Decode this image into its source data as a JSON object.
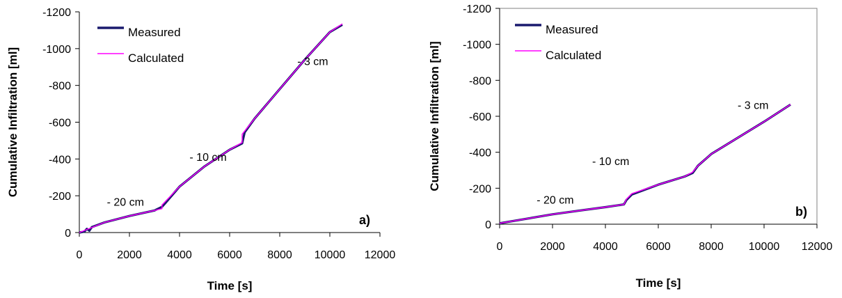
{
  "chart_data": [
    {
      "panel_label": "a)",
      "type": "line",
      "xlabel": "Time [s]",
      "ylabel": "Cumulative Infiltration [ml]",
      "xlim": [
        0,
        12000
      ],
      "ylim": [
        0,
        -1200
      ],
      "xticks": [
        "0",
        "2000",
        "4000",
        "6000",
        "8000",
        "10000",
        "12000"
      ],
      "yticks": [
        "0",
        "-200",
        "-400",
        "-600",
        "-800",
        "-1000",
        "-1200"
      ],
      "xtick_values": [
        0,
        2000,
        4000,
        6000,
        8000,
        10000,
        12000
      ],
      "ytick_values": [
        0,
        -200,
        -400,
        -600,
        -800,
        -1000,
        -1200
      ],
      "frame": "axes-only",
      "grid": false,
      "legend_position": "top-left",
      "series": [
        {
          "name": "Measured",
          "color": "#1a1a6e",
          "x": [
            0,
            200,
            300,
            400,
            500,
            1000,
            2000,
            3000,
            3300,
            3400,
            4000,
            5000,
            6000,
            6500,
            6600,
            7000,
            8000,
            9000,
            10000,
            10500
          ],
          "y": [
            0,
            -5,
            -20,
            -10,
            -30,
            -55,
            -90,
            -120,
            -140,
            -155,
            -250,
            -360,
            -450,
            -485,
            -545,
            -620,
            -780,
            -940,
            -1090,
            -1130
          ]
        },
        {
          "name": "Calculated",
          "color": "#ff00ff",
          "x": [
            0,
            1000,
            2000,
            3000,
            3300,
            3300,
            4000,
            5000,
            6000,
            6500,
            6500,
            7000,
            8000,
            9000,
            10000,
            10500
          ],
          "y": [
            0,
            -55,
            -90,
            -120,
            -130,
            -150,
            -250,
            -360,
            -450,
            -490,
            -535,
            -620,
            -780,
            -940,
            -1090,
            -1135
          ]
        }
      ],
      "annotations": [
        {
          "text": "- 20 cm",
          "x": 1100,
          "y": -145
        },
        {
          "text": "- 10 cm",
          "x": 4400,
          "y": -390
        },
        {
          "text": "- 3 cm",
          "x": 8700,
          "y": -910
        }
      ]
    },
    {
      "panel_label": "b)",
      "type": "line",
      "xlabel": "Time [s]",
      "ylabel": "Cumulative Infiltration [ml]",
      "xlim": [
        0,
        12000
      ],
      "ylim": [
        0,
        -1200
      ],
      "xticks": [
        "0",
        "2000",
        "4000",
        "6000",
        "8000",
        "10000",
        "12000"
      ],
      "yticks": [
        "0",
        "-200",
        "-400",
        "-600",
        "-800",
        "-1000",
        "-1200"
      ],
      "xtick_values": [
        0,
        2000,
        4000,
        6000,
        8000,
        10000,
        12000
      ],
      "ytick_values": [
        0,
        -200,
        -400,
        -600,
        -800,
        -1000,
        -1200
      ],
      "frame": "box",
      "grid": false,
      "legend_position": "top-left",
      "series": [
        {
          "name": "Measured",
          "color": "#1a1a6e",
          "x": [
            0,
            1000,
            2000,
            3000,
            4000,
            4700,
            4800,
            5000,
            6000,
            7000,
            7300,
            7500,
            8000,
            9000,
            10000,
            11000
          ],
          "y": [
            -5,
            -30,
            -55,
            -75,
            -95,
            -110,
            -135,
            -165,
            -220,
            -265,
            -285,
            -325,
            -390,
            -480,
            -570,
            -665
          ]
        },
        {
          "name": "Calculated",
          "color": "#ff00ff",
          "x": [
            0,
            1000,
            2000,
            3000,
            4000,
            4700,
            4800,
            5000,
            6000,
            7000,
            7300,
            7500,
            8000,
            9000,
            10000,
            11000
          ],
          "y": [
            -5,
            -30,
            -55,
            -75,
            -95,
            -110,
            -140,
            -170,
            -220,
            -265,
            -290,
            -325,
            -390,
            -480,
            -570,
            -665
          ]
        }
      ],
      "annotations": [
        {
          "text": "- 20 cm",
          "x": 1400,
          "y": -115
        },
        {
          "text": "- 10 cm",
          "x": 3500,
          "y": -330
        },
        {
          "text": "- 3 cm",
          "x": 9000,
          "y": -640
        }
      ]
    }
  ]
}
